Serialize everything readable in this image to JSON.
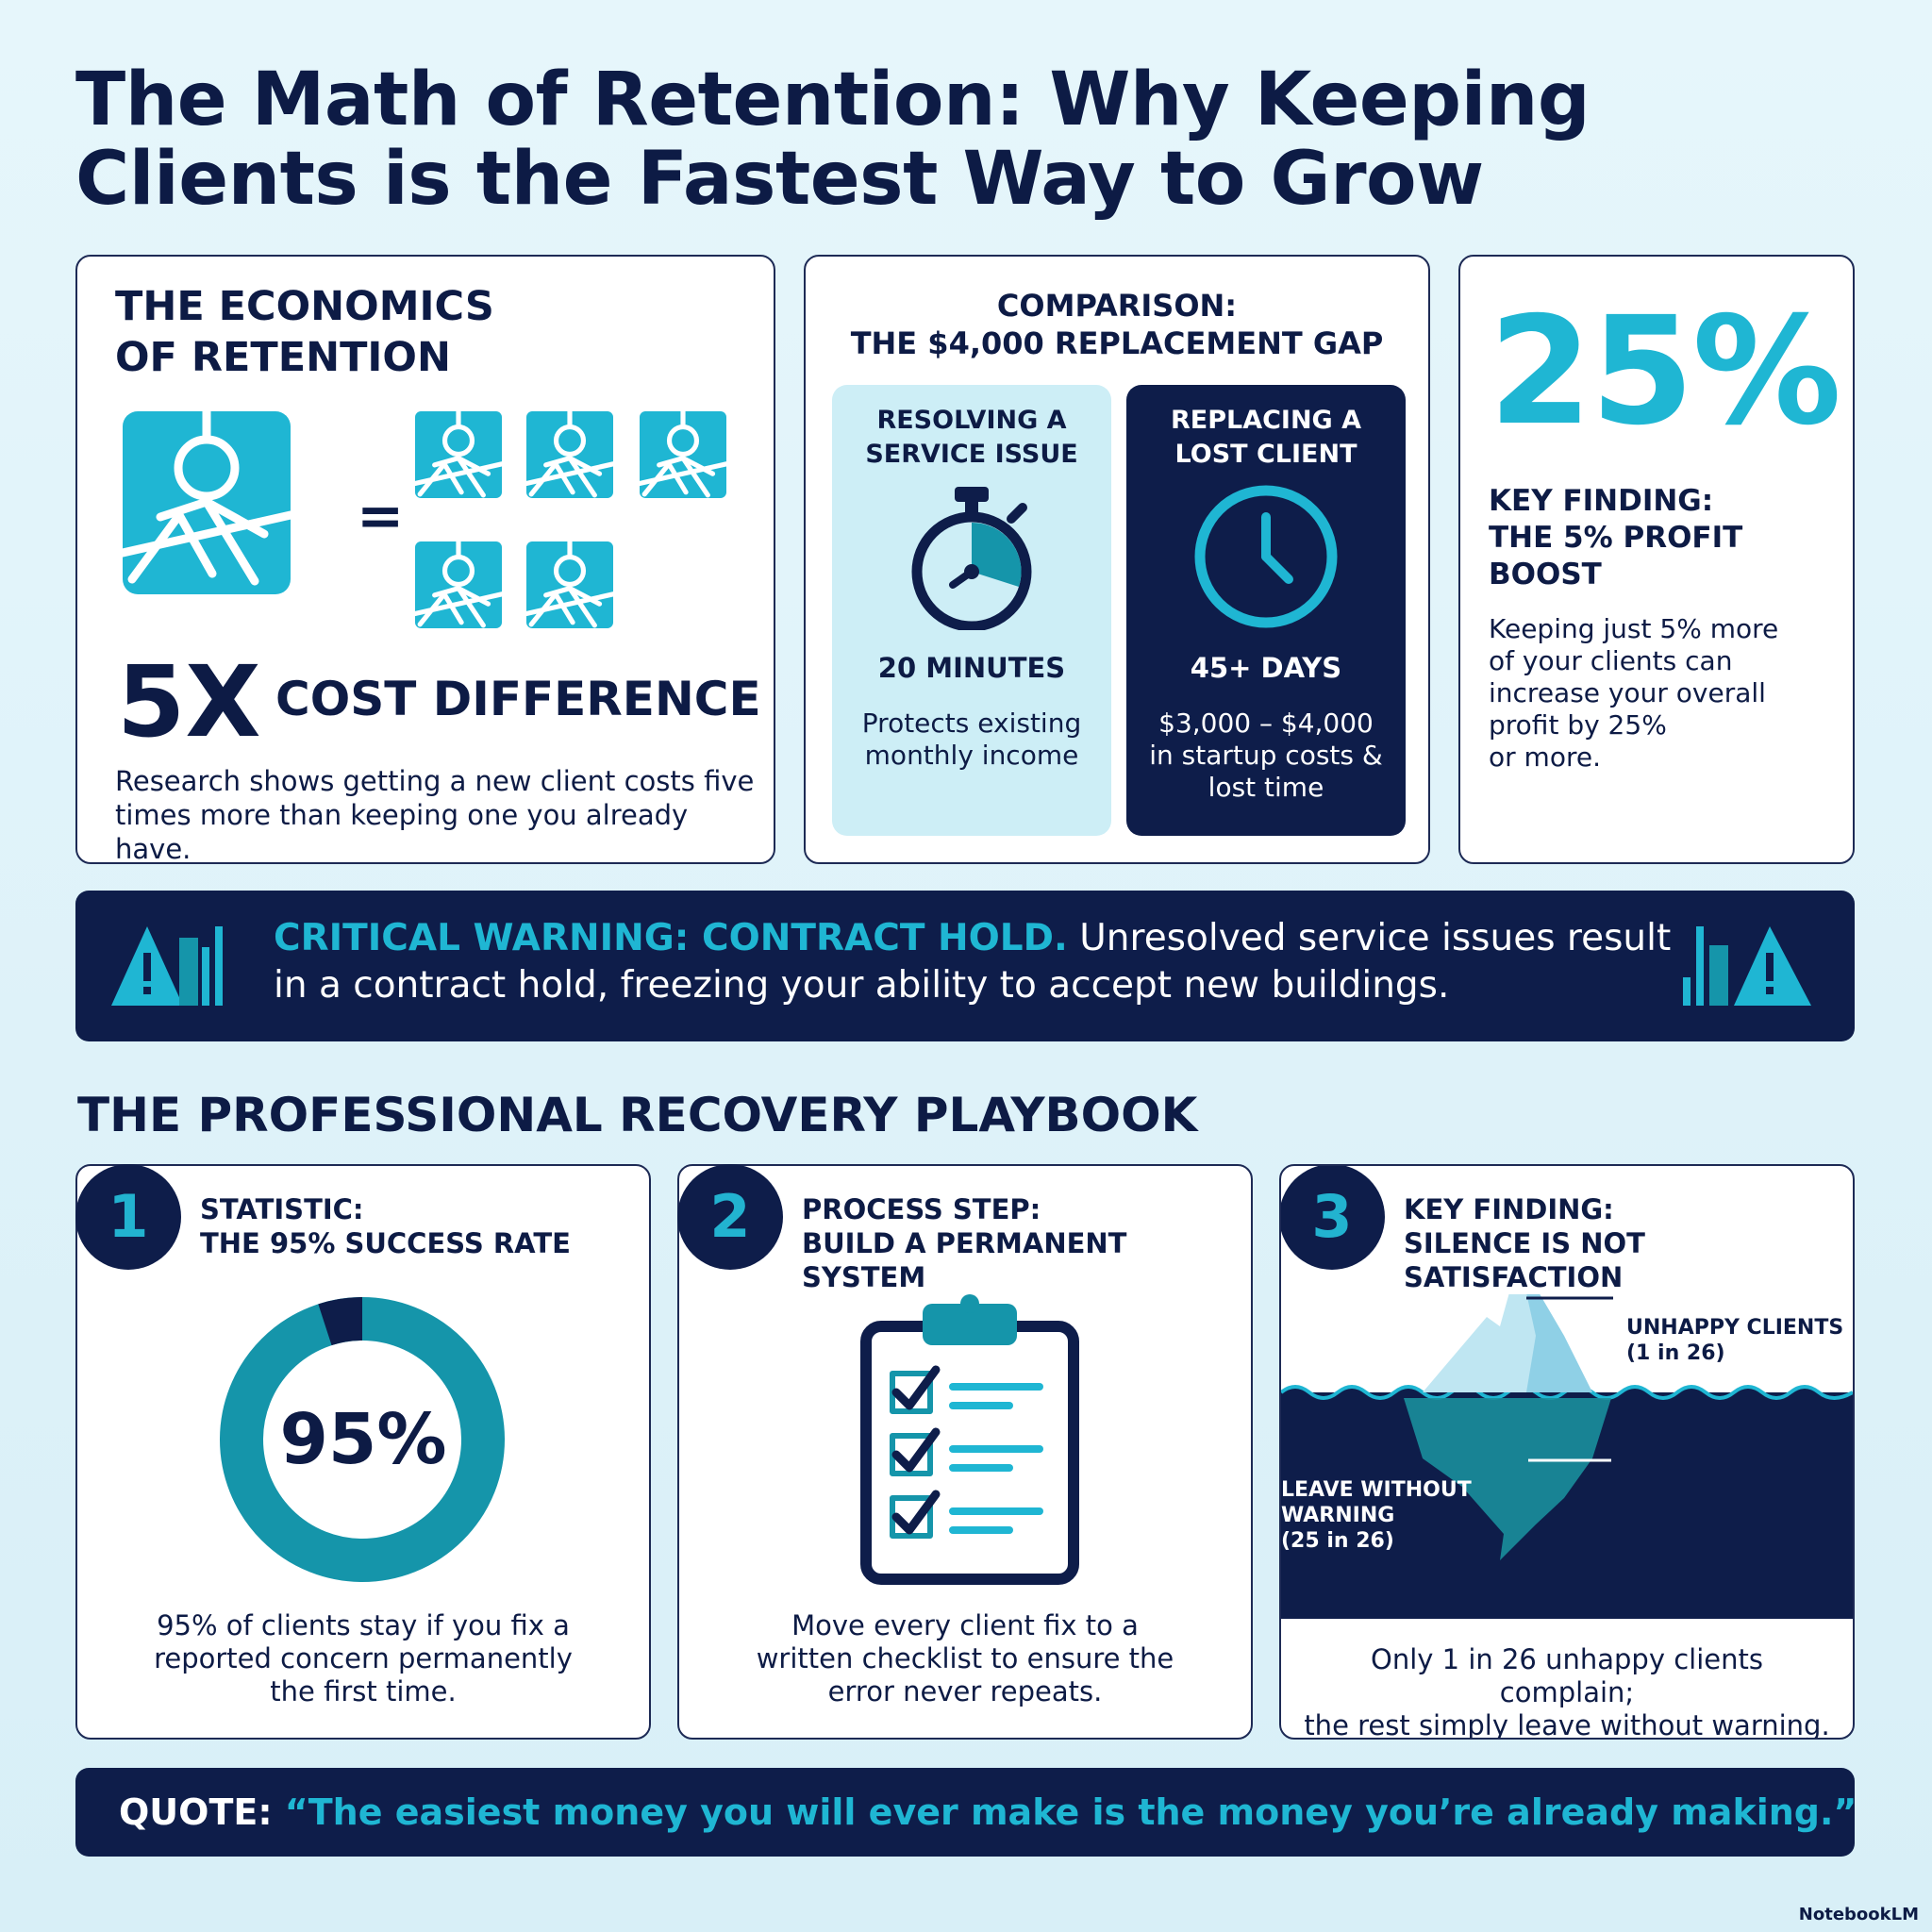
{
  "title": "The Math of Retention: Why Keeping Clients is the Fastest Way to Grow",
  "economics": {
    "heading_line1": "THE ECONOMICS",
    "heading_line2": "OF RETENTION",
    "multiplier": "5X",
    "label": "COST DIFFERENCE",
    "description": "Research shows getting a new client costs five times more than keeping one you already have.",
    "equals_sign": "=",
    "icons": [
      "client-icon",
      "client-icon",
      "client-icon",
      "client-icon",
      "client-icon",
      "client-icon"
    ]
  },
  "comparison": {
    "heading_line1": "COMPARISON:",
    "heading_line2": "THE $4,000 REPLACEMENT GAP",
    "resolve": {
      "title_line1": "RESOLVING A",
      "title_line2": "SERVICE ISSUE",
      "value": "20 MINUTES",
      "desc_line1": "Protects existing",
      "desc_line2": "monthly income",
      "icon": "stopwatch-icon"
    },
    "replace": {
      "title_line1": "REPLACING A",
      "title_line2": "LOST CLIENT",
      "value": "45+ DAYS",
      "desc_line1": "$3,000 – $4,000",
      "desc_line2": "in startup costs &",
      "desc_line3": "lost time",
      "icon": "clock-icon"
    }
  },
  "boost": {
    "big_value": "25%",
    "heading_line1": "KEY FINDING:",
    "heading_line2": "THE 5% PROFIT",
    "heading_line3": "BOOST",
    "desc_line1": "Keeping just 5% more",
    "desc_line2": "of your clients can",
    "desc_line3": "increase your overall",
    "desc_line4": "profit by 25%",
    "desc_line5": "or more."
  },
  "warning": {
    "label": "CRITICAL WARNING: CONTRACT HOLD.",
    "text_line1": "Unresolved service issues result",
    "text_line2": "in a contract hold, freezing your ability to accept new buildings.",
    "icon": "warning-icon"
  },
  "playbook": {
    "title": "THE PROFESSIONAL RECOVERY PLAYBOOK",
    "cards": [
      {
        "number": "1",
        "title_line1": "STATISTIC:",
        "title_line2": "THE 95% SUCCESS RATE",
        "center_value": "95%",
        "ring_fraction": 0.95,
        "desc_line1": "95% of clients stay if you fix a",
        "desc_line2": "reported concern permanently",
        "desc_line3": "the first time."
      },
      {
        "number": "2",
        "title_line1": "PROCESS STEP:",
        "title_line2": "BUILD A PERMANENT SYSTEM",
        "icon": "checklist-icon",
        "desc_line1": "Move every client fix to a",
        "desc_line2": "written checklist to ensure the",
        "desc_line3": "error never repeats."
      },
      {
        "number": "3",
        "title_line1": "KEY FINDING:",
        "title_line2": "SILENCE IS NOT SATISFACTION",
        "icon": "iceberg-icon",
        "label_top_line1": "UNHAPPY CLIENTS",
        "label_top_line2": "(1 in 26)",
        "label_bottom_line1": "LEAVE WITHOUT",
        "label_bottom_line2": "WARNING",
        "label_bottom_line3": "(25 in 26)",
        "desc_line1": "Only 1 in 26 unhappy clients complain;",
        "desc_line2": "the rest simply leave without warning."
      }
    ]
  },
  "quote": {
    "label": "QUOTE:",
    "text": "“The easiest money you will ever make is the money you’re already making.”"
  },
  "brand": "NotebookLM",
  "colors": {
    "navy": "#0e1d4a",
    "teal": "#1fb6d3",
    "light_teal": "#cdeef6",
    "ring_teal": "#1595aa"
  }
}
